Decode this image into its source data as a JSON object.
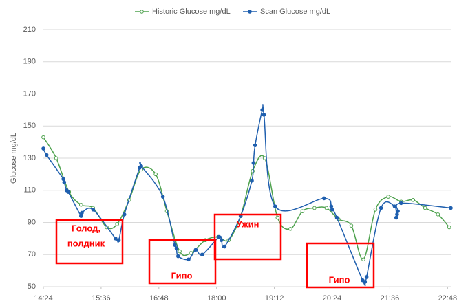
{
  "chart_data": {
    "type": "line",
    "y_label": "Glucose mg/dL",
    "xlim": [
      864,
      1372
    ],
    "xticks": [
      {
        "value": 864,
        "label": "14:24"
      },
      {
        "value": 936,
        "label": "15:36"
      },
      {
        "value": 1008,
        "label": "16:48"
      },
      {
        "value": 1080,
        "label": "18:00"
      },
      {
        "value": 1152,
        "label": "19:12"
      },
      {
        "value": 1224,
        "label": "20:24"
      },
      {
        "value": 1296,
        "label": "21:36"
      },
      {
        "value": 1368,
        "label": "22:48"
      }
    ],
    "ylim": [
      50,
      210
    ],
    "yticks": [
      50,
      70,
      90,
      110,
      130,
      150,
      170,
      190,
      210
    ],
    "grid": true,
    "legend": "top",
    "series": [
      {
        "name": "Historic Glucose mg/dL",
        "color": "#4ea24e",
        "marker": "hollow",
        "x": [
          864,
          880,
          896,
          911,
          926,
          943,
          956,
          971,
          986,
          1004,
          1018,
          1034,
          1048,
          1066,
          1082,
          1095,
          1110,
          1125,
          1140,
          1156,
          1172,
          1187,
          1202,
          1217,
          1232,
          1248,
          1263,
          1278,
          1294,
          1310,
          1325,
          1340,
          1356,
          1370
        ],
        "values": [
          143,
          130,
          109,
          101,
          99,
          87,
          89,
          104,
          123,
          120,
          97,
          72,
          71,
          79,
          81,
          79,
          94,
          122,
          130,
          93,
          86,
          97,
          99,
          99,
          92,
          88,
          67,
          98,
          106,
          103,
          104,
          99,
          95,
          87
        ]
      },
      {
        "name": "Scan Glucose mg/dL",
        "color": "#1f5fae",
        "marker": "filled",
        "x": [
          864,
          868,
          889,
          890,
          893,
          895,
          911,
          912,
          926,
          954,
          958,
          965,
          984,
          986,
          1013,
          1028,
          1030,
          1032,
          1045,
          1054,
          1062,
          1083,
          1086,
          1090,
          1110,
          1124,
          1126,
          1128,
          1137,
          1139,
          1153,
          1214,
          1223,
          1224,
          1230,
          1262,
          1265,
          1267,
          1285,
          1302,
          1304,
          1305,
          1306,
          1310,
          1372
        ],
        "values": [
          136,
          132,
          117,
          115,
          110,
          109,
          94,
          96,
          98,
          80,
          79,
          95,
          124,
          125,
          106,
          76,
          74,
          69,
          67,
          73,
          70,
          81,
          79,
          75,
          94,
          116,
          127,
          138,
          160,
          157,
          100,
          105,
          100,
          98,
          93,
          54,
          53,
          56,
          99,
          100,
          93,
          95,
          97,
          102,
          99
        ]
      }
    ],
    "annotations": [
      {
        "lines": [
          "Голод,",
          "полдник"
        ]
      },
      {
        "lines": [
          "Гипо"
        ]
      },
      {
        "lines": [
          "Ужин"
        ]
      },
      {
        "lines": [
          "Гипо"
        ]
      }
    ]
  }
}
